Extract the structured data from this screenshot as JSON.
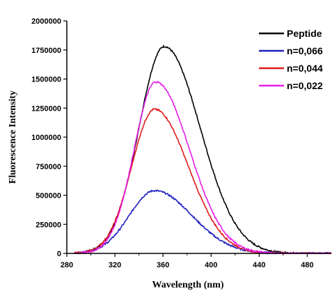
{
  "chart_data": {
    "type": "line",
    "xlabel": "Wavelength (nm)",
    "ylabel": "Fluorescence Intensity",
    "xlim": [
      280,
      500
    ],
    "ylim": [
      0,
      2000000
    ],
    "x_ticks": [
      280,
      320,
      360,
      400,
      440,
      480
    ],
    "y_ticks": [
      0,
      250000,
      500000,
      750000,
      1000000,
      1250000,
      1500000,
      1750000,
      2000000
    ],
    "grid": false,
    "legend_position": "top-right",
    "series": [
      {
        "name": "Peptide",
        "color": "#000000",
        "peak_x": 361,
        "peak_y": 1780000,
        "sigma_left": 21,
        "sigma_right": 30
      },
      {
        "name": "n=0,066",
        "color": "#1f1fbf",
        "peak_x": 353,
        "peak_y": 540000,
        "sigma_left": 21,
        "sigma_right": 31
      },
      {
        "name": "n=0,044",
        "color": "#e01b1b",
        "peak_x": 353,
        "peak_y": 1240000,
        "sigma_left": 19,
        "sigma_right": 28
      },
      {
        "name": "n=0,022",
        "color": "#e81ce8",
        "peak_x": 354,
        "peak_y": 1475000,
        "sigma_left": 18,
        "sigma_right": 28
      }
    ]
  }
}
